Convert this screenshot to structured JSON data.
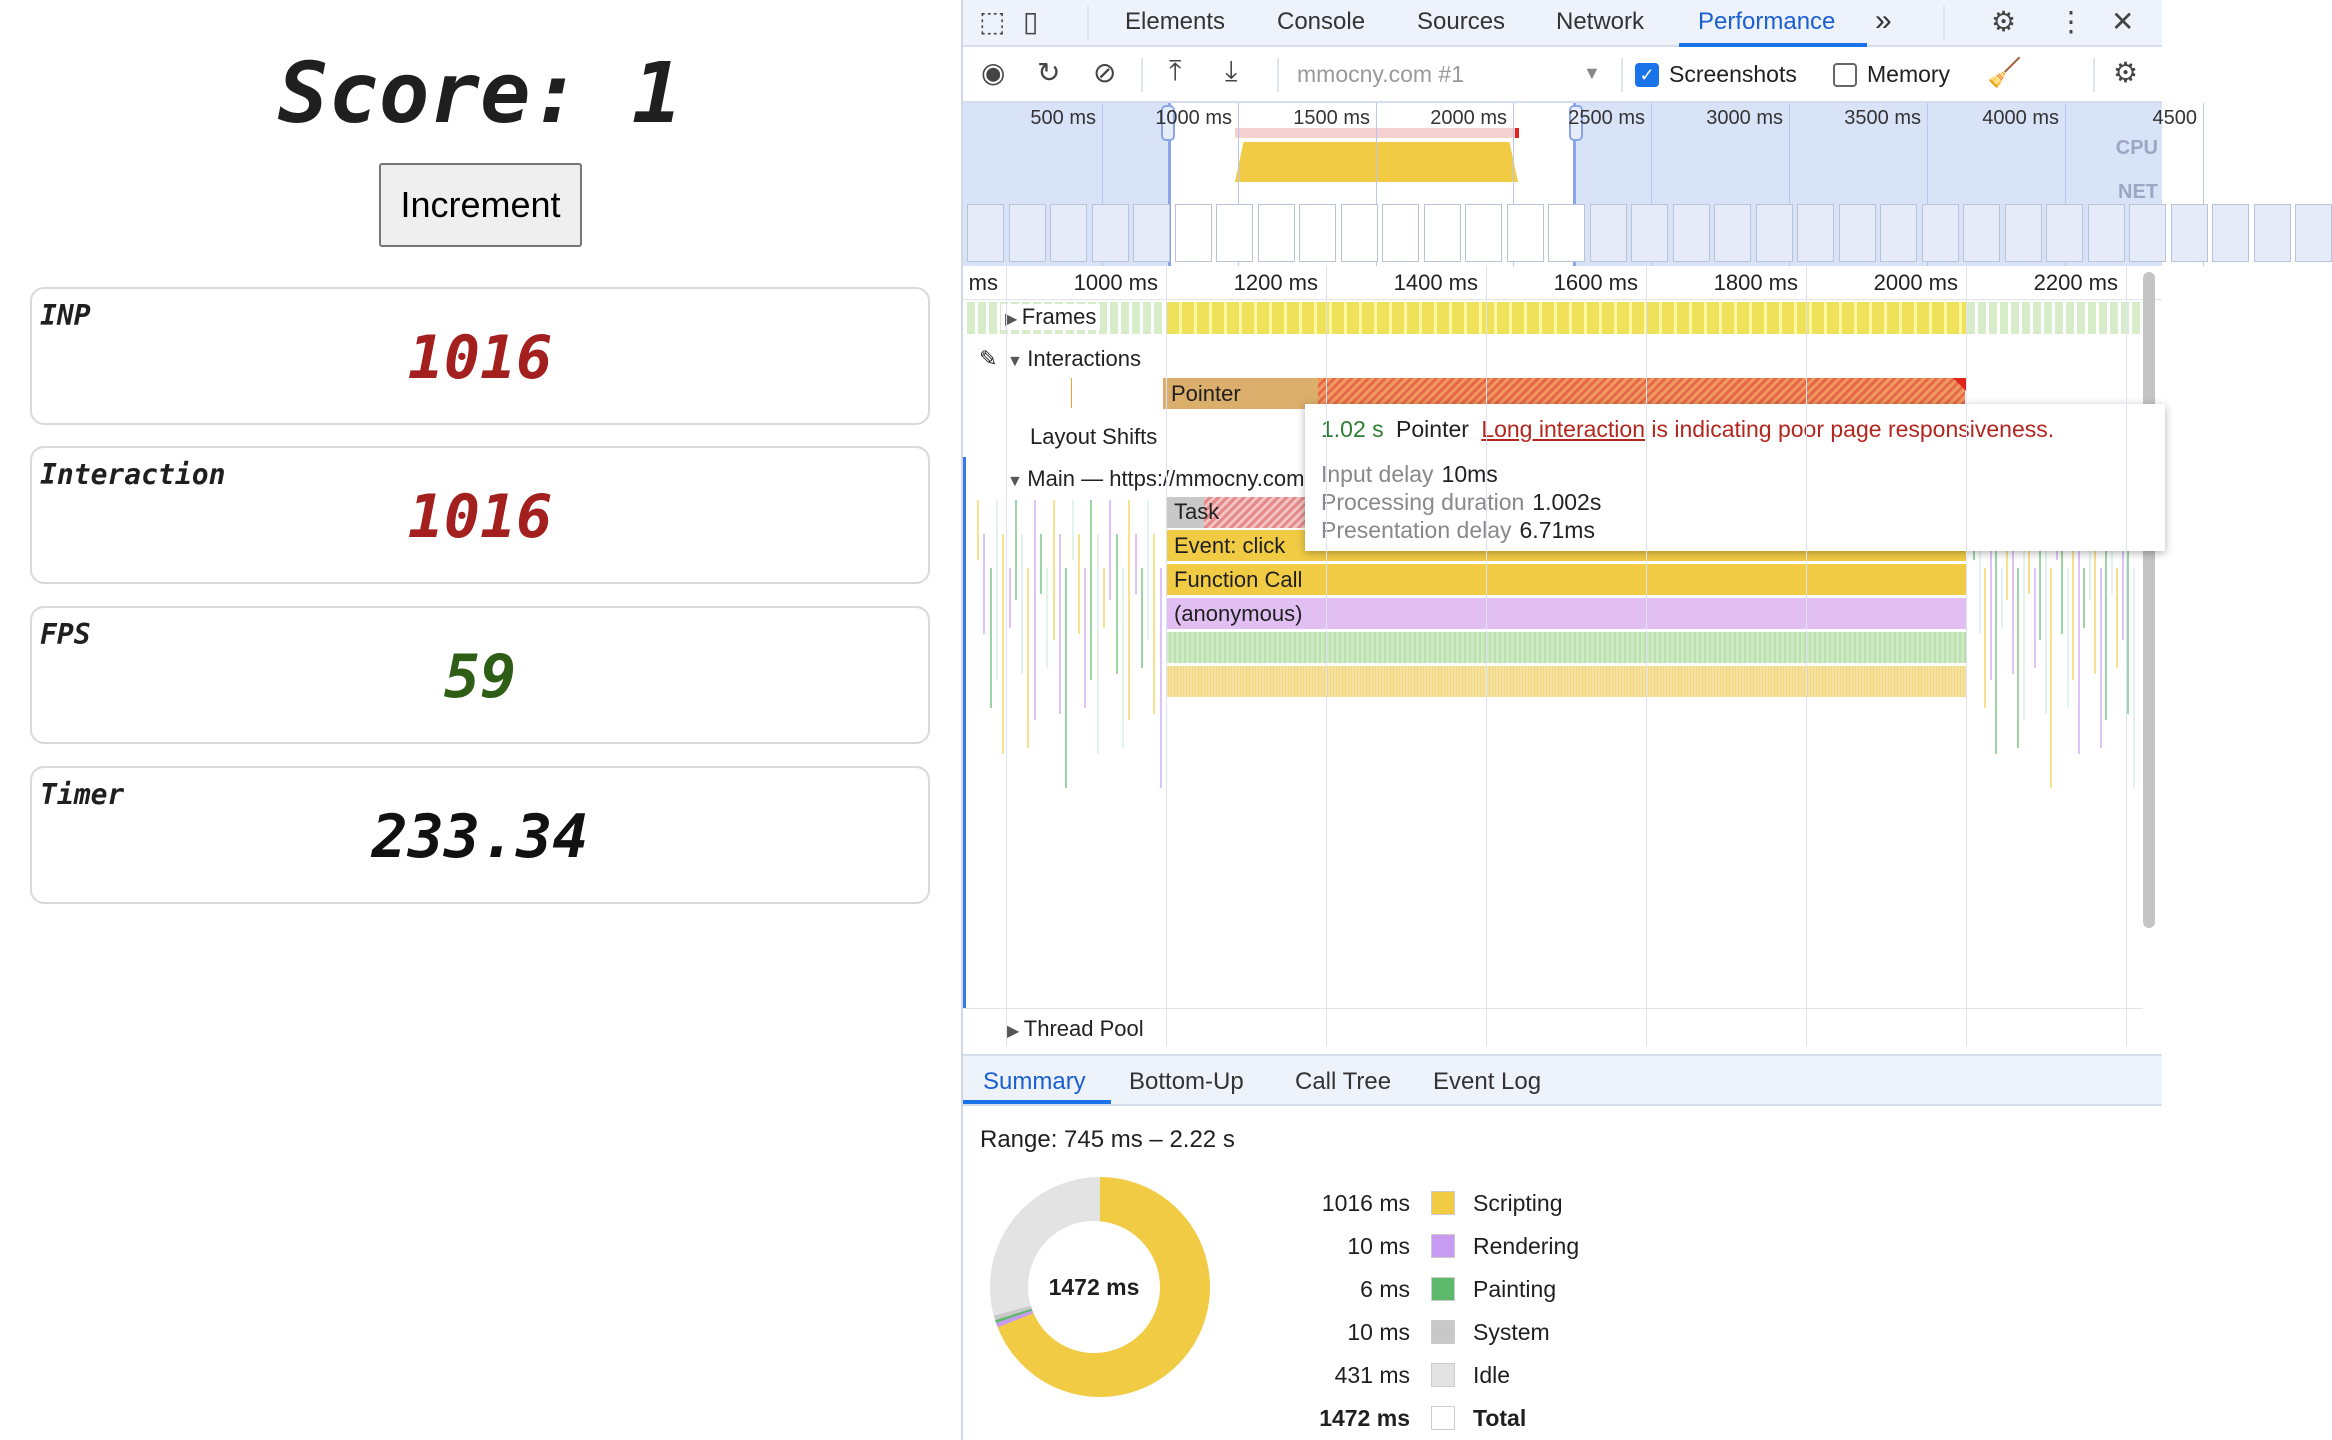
{
  "page": {
    "score_label": "Score: 1",
    "increment_label": "Increment",
    "cards": [
      {
        "label": "INP",
        "value": "1016",
        "color": "#a3201e"
      },
      {
        "label": "Interaction",
        "value": "1016",
        "color": "#a3201e"
      },
      {
        "label": "FPS",
        "value": "59",
        "color": "#2e5e16"
      },
      {
        "label": "Timer",
        "value": "233.34",
        "color": "#111111"
      }
    ]
  },
  "devtools": {
    "tabs": [
      "Elements",
      "Console",
      "Sources",
      "Network",
      "Performance"
    ],
    "active_tab": "Performance",
    "more_tabs": "»",
    "toolbar": {
      "target": "mmocny.com #1",
      "screenshots_label": "Screenshots",
      "screenshots_checked": true,
      "memory_label": "Memory",
      "memory_checked": false
    },
    "overview": {
      "ticks": [
        "500 ms",
        "1000 ms",
        "1500 ms",
        "2000 ms",
        "2500 ms",
        "3000 ms",
        "3500 ms",
        "4000 ms",
        "4500"
      ],
      "cpu_label": "CPU",
      "net_label": "NET"
    },
    "ruler": [
      "ms",
      "1000 ms",
      "1200 ms",
      "1400 ms",
      "1600 ms",
      "1800 ms",
      "2000 ms",
      "2200 ms"
    ],
    "tracks": {
      "frames": "Frames",
      "interactions": "Interactions",
      "pointer": "Pointer",
      "layout_shifts": "Layout Shifts",
      "main": "Main — https://mmocny.com",
      "thread_pool": "Thread Pool"
    },
    "flame": {
      "task": "Task",
      "event_click": "Event: click",
      "function_call": "Function Call",
      "anonymous": "(anonymous)"
    },
    "tooltip": {
      "duration": "1.02 s",
      "type": "Pointer",
      "link": "Long interaction",
      "message": " is indicating poor page responsiveness.",
      "input_delay_label": "Input delay",
      "input_delay": "10ms",
      "processing_label": "Processing duration",
      "processing": "1.002s",
      "presentation_label": "Presentation delay",
      "presentation": "6.71ms"
    },
    "bottom_tabs": [
      "Summary",
      "Bottom-Up",
      "Call Tree",
      "Event Log"
    ],
    "summary": {
      "range": "Range: 745 ms – 2.22 s",
      "total_center": "1472 ms",
      "items": [
        {
          "value": "1016 ms",
          "ms": 1016,
          "label": "Scripting",
          "color": "#f2cb45"
        },
        {
          "value": "10 ms",
          "ms": 10,
          "label": "Rendering",
          "color": "#c79bf2"
        },
        {
          "value": "6 ms",
          "ms": 6,
          "label": "Painting",
          "color": "#5cb96b"
        },
        {
          "value": "10 ms",
          "ms": 10,
          "label": "System",
          "color": "#c8c8c8"
        },
        {
          "value": "431 ms",
          "ms": 431,
          "label": "Idle",
          "color": "#e3e3e3"
        },
        {
          "value": "1472 ms",
          "ms": 1472,
          "label": "Total",
          "color": "#ffffff"
        }
      ]
    }
  }
}
